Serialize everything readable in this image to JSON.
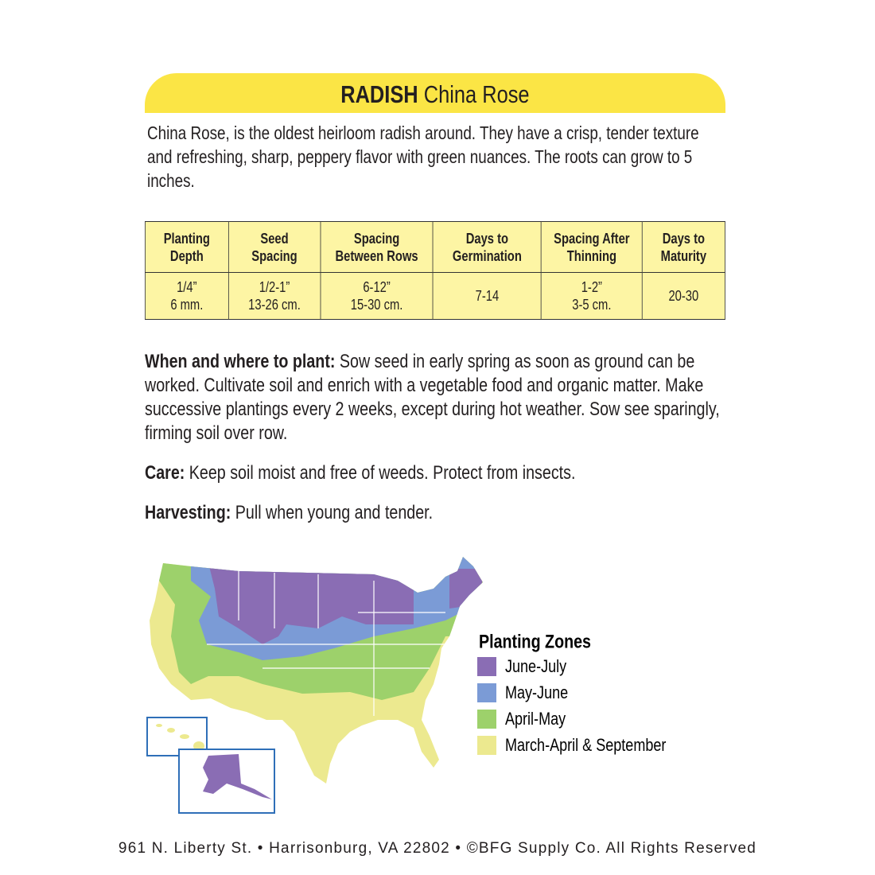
{
  "header": {
    "title_bold": "RADISH",
    "title_rest": "China Rose"
  },
  "description": "China Rose, is the oldest heirloom radish around. They have a crisp, tender texture and refreshing, sharp, peppery flavor with green nuances.  The roots can grow to 5 inches.",
  "table": {
    "headers": [
      "Planting\nDepth",
      "Seed\nSpacing",
      "Spacing\nBetween Rows",
      "Days to\nGermination",
      "Spacing After\nThinning",
      "Days to\nMaturity"
    ],
    "rows": [
      [
        "1/4”\n6 mm.",
        "1/2-1”\n13-26 cm.",
        "6-12”\n15-30 cm.",
        "7-14",
        "1-2”\n3-5 cm.",
        "20-30"
      ]
    ]
  },
  "sections": [
    {
      "label": "When and where to plant:",
      "text": "Sow seed in early spring as soon as ground can be worked. Cultivate soil and enrich with a vegetable food and organic matter. Make successive plantings every 2 weeks, except during hot weather. Sow see sparingly, firming soil over row."
    },
    {
      "label": "Care:",
      "text": "Keep soil moist and free of weeds. Protect from insects."
    },
    {
      "label": "Harvesting:",
      "text": "Pull when young and tender."
    }
  ],
  "map": {
    "legend_title": "Planting Zones",
    "legend": [
      {
        "label": "June-July",
        "color": "#8a6db4"
      },
      {
        "label": "May-June",
        "color": "#7b9bd6"
      },
      {
        "label": "April-May",
        "color": "#9dd16b"
      },
      {
        "label": "March-April & September",
        "color": "#ece98f"
      }
    ]
  },
  "footer": "961 N. Liberty St. • Harrisonburg, VA 22802 • ©BFG Supply Co. All Rights Reserved"
}
